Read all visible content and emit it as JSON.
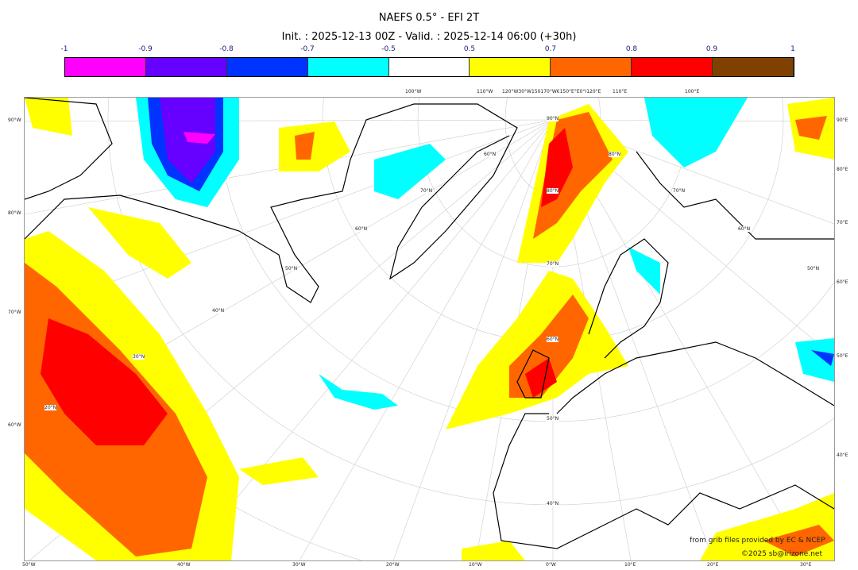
{
  "title": "NAEFS 0.5° - EFI 2T",
  "subtitle": "Init. : 2025-12-13 00Z - Valid. : 2025-12-14 06:00 (+30h)",
  "colorbar": {
    "ticks": [
      "-1",
      "-0.9",
      "-0.8",
      "-0.7",
      "-0.5",
      "0.5",
      "0.7",
      "0.8",
      "0.9",
      "1"
    ],
    "colors": [
      "#ff00ff",
      "#6600ff",
      "#0033ff",
      "#00ffff",
      "#ffffff",
      "#ffff00",
      "#ff6600",
      "#ff0000",
      "#804000"
    ]
  },
  "axes": {
    "left": [
      "90°W",
      "80°W",
      "70°W",
      "60°W"
    ],
    "right": [
      "90°E",
      "80°E",
      "70°E",
      "60°E",
      "50°E",
      "40°E"
    ],
    "bottom": [
      "50°W",
      "40°W",
      "30°W",
      "20°W",
      "10°W",
      "0°W",
      "10°E",
      "20°E",
      "30°E"
    ],
    "top": [
      "100°W",
      "110°W",
      "120°W30°W150170°W€150°E°E0°I120°E",
      "110°E",
      "100°E"
    ],
    "lat": [
      "90°N",
      "80°N",
      "70°N",
      "60°N",
      "50°N",
      "40°N",
      "60°N",
      "70°N",
      "60°N",
      "50°N",
      "40°N",
      "30°N",
      "20°N",
      "80°N",
      "70°N",
      "60°N",
      "50°N"
    ]
  },
  "footer": {
    "credit": "from grib files provided by EC & NCEP",
    "copyright": "©2025 sb@irizone.net"
  }
}
